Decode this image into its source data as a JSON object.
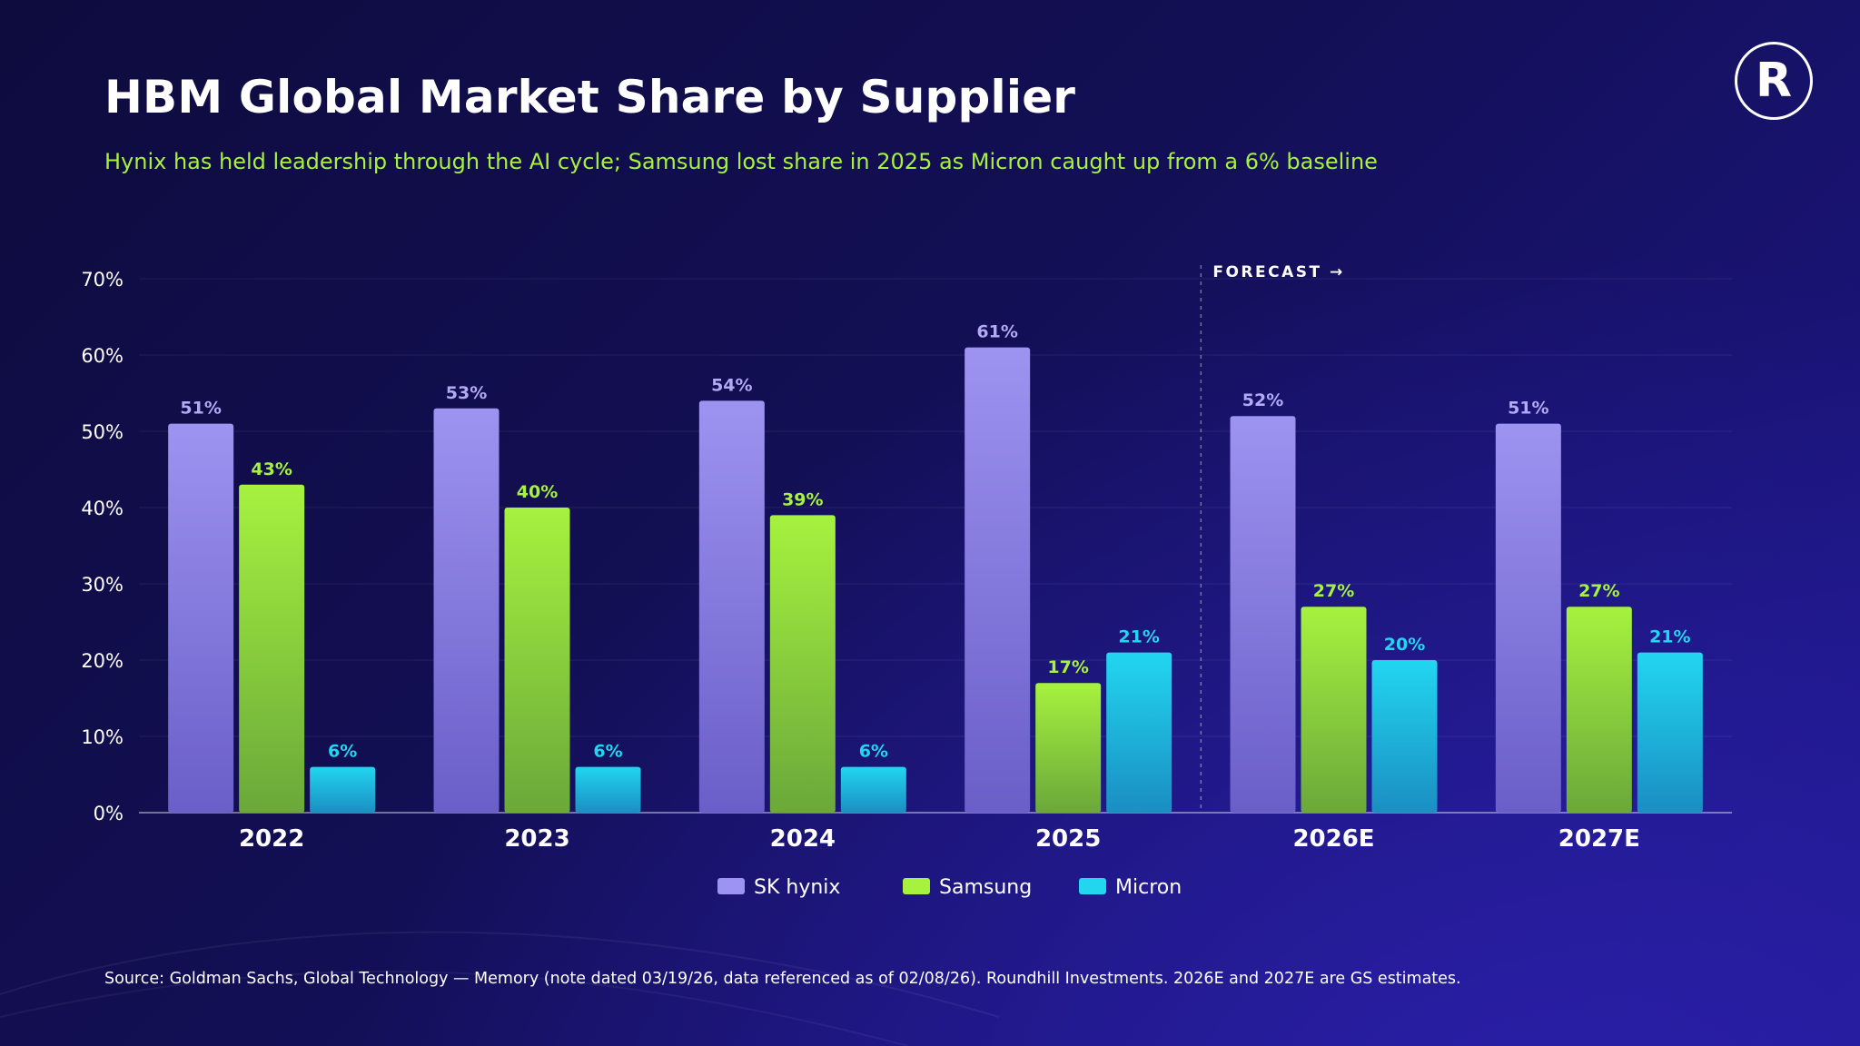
{
  "header": {
    "title": "HBM Global Market Share by Supplier",
    "subtitle": "Hynix has held leadership through the AI cycle; Samsung lost share in 2025 as Micron caught up from a 6% baseline",
    "logo_letter": "R"
  },
  "footer": {
    "source": "Source: Goldman Sachs, Global Technology — Memory (note dated 03/19/26, data referenced as of 02/08/26). Roundhill Investments. 2026E and 2027E are GS estimates."
  },
  "chart_data": {
    "type": "bar",
    "categories": [
      "2022",
      "2023",
      "2024",
      "2025",
      "2026E",
      "2027E"
    ],
    "series": [
      {
        "name": "SK hynix",
        "values": [
          51,
          53,
          54,
          61,
          52,
          51
        ],
        "color": "#9d93f0",
        "color_bottom": "#6a5ec8",
        "label_color": "#b3aaf5"
      },
      {
        "name": "Samsung",
        "values": [
          43,
          40,
          39,
          17,
          27,
          27
        ],
        "color": "#a6f23f",
        "color_bottom": "#6aa83a",
        "label_color": "#a6f23f"
      },
      {
        "name": "Micron",
        "values": [
          6,
          6,
          6,
          21,
          20,
          21
        ],
        "color": "#22d6f0",
        "color_bottom": "#1a8ec2",
        "label_color": "#22d6f0"
      }
    ],
    "y_ticks": [
      "0%",
      "10%",
      "20%",
      "30%",
      "40%",
      "50%",
      "60%",
      "70%"
    ],
    "ylim": [
      0,
      70
    ],
    "value_suffix": "%",
    "forecast_label": "FORECAST →",
    "forecast_start_category": "2026E",
    "grid": true,
    "legend_position": "bottom-center"
  }
}
